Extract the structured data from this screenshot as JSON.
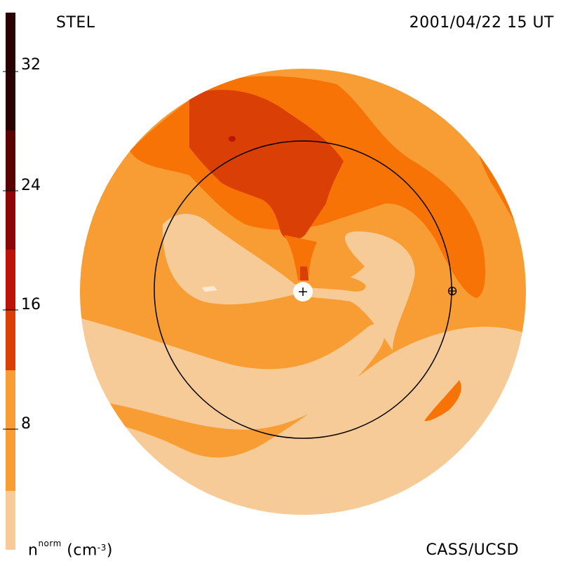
{
  "header": {
    "left_title": "STEL",
    "right_title": "2001/04/22 15 UT"
  },
  "footer": {
    "credit": "CASS/UCSD"
  },
  "colorbar": {
    "unit_base": "n",
    "unit_sup": "norm",
    "unit_open": " (cm",
    "unit_exp": "-3",
    "unit_close": ")",
    "ticks": [
      "32",
      "24",
      "16",
      "8"
    ],
    "tick_values": [
      32,
      24,
      16,
      8
    ],
    "range": [
      0,
      36
    ],
    "colors": [
      "#f7cb97",
      "#f79d33",
      "#f77306",
      "#da3f05",
      "#bb1509",
      "#8b0606",
      "#5a0303",
      "#2a0101"
    ]
  },
  "palette": {
    "level1": "#f7cb97",
    "level2": "#f79d33",
    "level3": "#f77306",
    "level4": "#da3f05",
    "level5": "#bb1509"
  }
}
